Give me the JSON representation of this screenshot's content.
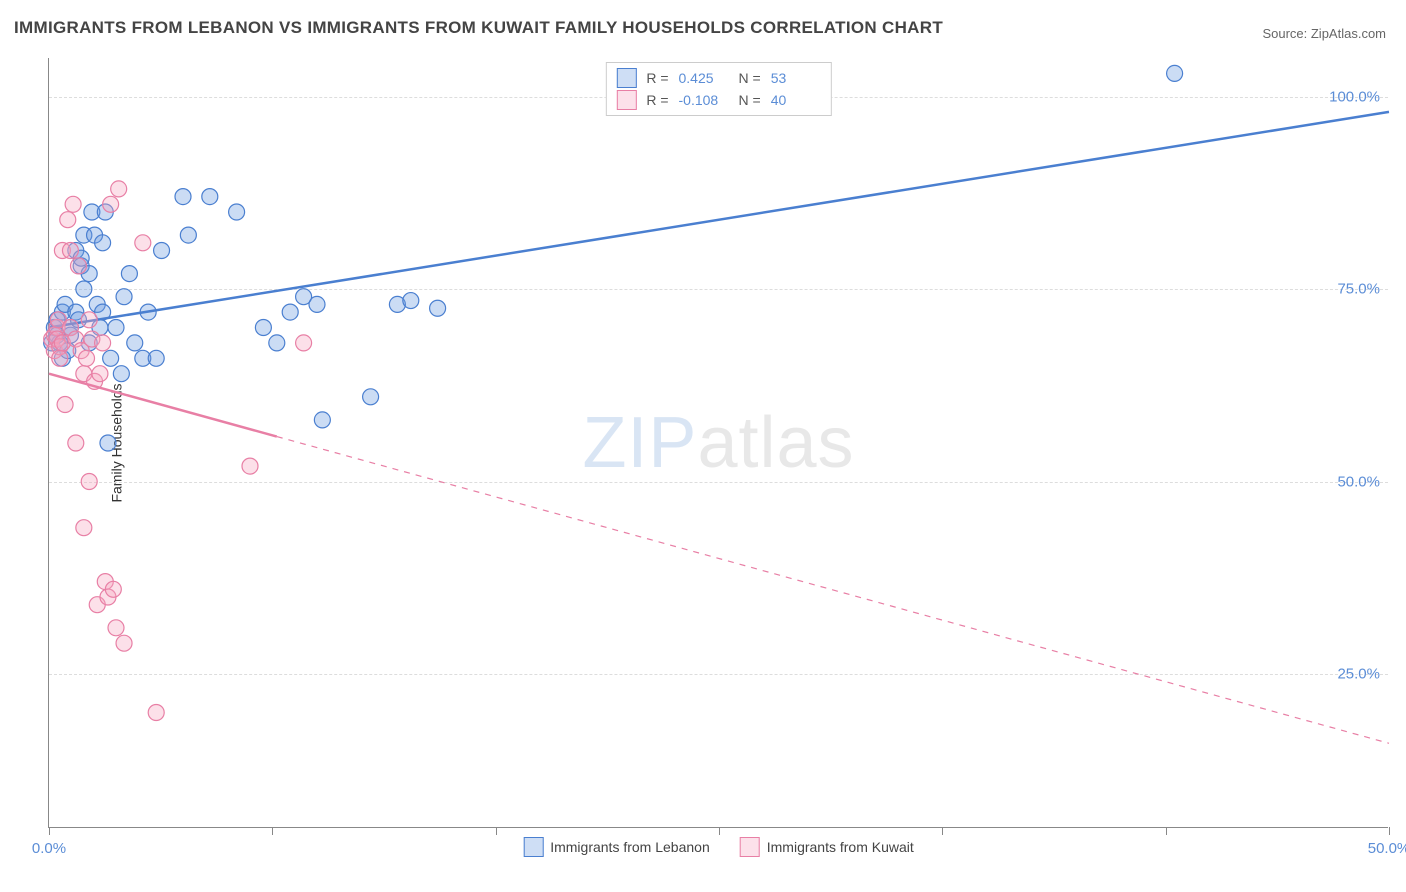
{
  "title": "IMMIGRANTS FROM LEBANON VS IMMIGRANTS FROM KUWAIT FAMILY HOUSEHOLDS CORRELATION CHART",
  "source_label": "Source: ZipAtlas.com",
  "ylabel": "Family Households",
  "watermark_a": "ZIP",
  "watermark_b": "atlas",
  "chart": {
    "type": "scatter",
    "xlim": [
      0,
      50
    ],
    "ylim": [
      5,
      105
    ],
    "x_tick_positions": [
      0,
      8.33,
      16.67,
      25,
      33.33,
      41.67,
      50
    ],
    "x_tick_labels": [
      "0.0%",
      "",
      "",
      "",
      "",
      "",
      "50.0%"
    ],
    "y_gridlines": [
      25,
      50,
      75,
      100
    ],
    "y_tick_labels": [
      "25.0%",
      "50.0%",
      "75.0%",
      "100.0%"
    ],
    "background_color": "#ffffff",
    "grid_color": "#dddddd",
    "axis_color": "#888888",
    "tick_label_color": "#5b8dd6",
    "marker_radius": 8,
    "marker_stroke_width": 1.2,
    "marker_fill_opacity": 0.35,
    "trend_line_width": 2.5
  },
  "series": [
    {
      "key": "lebanon",
      "label": "Immigrants from Lebanon",
      "color": "#6b9ce0",
      "stroke": "#4a7fd0",
      "R": "0.425",
      "N": "53",
      "trend": {
        "x1": 0,
        "y1": 70,
        "x2": 50,
        "y2": 98,
        "dash_after_x": null
      },
      "points": [
        [
          0.1,
          68
        ],
        [
          0.2,
          70
        ],
        [
          0.3,
          69
        ],
        [
          0.3,
          71
        ],
        [
          0.4,
          68
        ],
        [
          0.5,
          66
        ],
        [
          0.5,
          72
        ],
        [
          0.6,
          73
        ],
        [
          0.7,
          67
        ],
        [
          0.8,
          69
        ],
        [
          0.8,
          70
        ],
        [
          1.0,
          80
        ],
        [
          1.0,
          72
        ],
        [
          1.1,
          71
        ],
        [
          1.2,
          78
        ],
        [
          1.2,
          79
        ],
        [
          1.3,
          82
        ],
        [
          1.3,
          75
        ],
        [
          1.5,
          68
        ],
        [
          1.5,
          77
        ],
        [
          1.6,
          85
        ],
        [
          1.7,
          82
        ],
        [
          1.8,
          73
        ],
        [
          1.9,
          70
        ],
        [
          2.0,
          81
        ],
        [
          2.0,
          72
        ],
        [
          2.1,
          85
        ],
        [
          2.2,
          55
        ],
        [
          2.3,
          66
        ],
        [
          2.5,
          70
        ],
        [
          2.7,
          64
        ],
        [
          2.8,
          74
        ],
        [
          3.0,
          77
        ],
        [
          3.2,
          68
        ],
        [
          3.5,
          66
        ],
        [
          3.7,
          72
        ],
        [
          4.0,
          66
        ],
        [
          4.2,
          80
        ],
        [
          5.0,
          87
        ],
        [
          5.2,
          82
        ],
        [
          6.0,
          87
        ],
        [
          7.0,
          85
        ],
        [
          8.0,
          70
        ],
        [
          8.5,
          68
        ],
        [
          9.0,
          72
        ],
        [
          9.5,
          74
        ],
        [
          10.0,
          73
        ],
        [
          10.2,
          58
        ],
        [
          12.0,
          61
        ],
        [
          13.0,
          73
        ],
        [
          13.5,
          73.5
        ],
        [
          14.5,
          72.5
        ],
        [
          42.0,
          103
        ]
      ]
    },
    {
      "key": "kuwait",
      "label": "Immigrants from Kuwait",
      "color": "#f5a6c0",
      "stroke": "#e87fa5",
      "R": "-0.108",
      "N": "40",
      "trend": {
        "x1": 0,
        "y1": 64,
        "x2": 50,
        "y2": 16,
        "dash_after_x": 8.5
      },
      "points": [
        [
          0.1,
          68.5
        ],
        [
          0.2,
          67
        ],
        [
          0.2,
          69
        ],
        [
          0.3,
          70
        ],
        [
          0.3,
          68.5
        ],
        [
          0.35,
          71
        ],
        [
          0.4,
          67.5
        ],
        [
          0.4,
          66
        ],
        [
          0.5,
          80
        ],
        [
          0.5,
          68
        ],
        [
          0.6,
          60
        ],
        [
          0.7,
          84
        ],
        [
          0.8,
          80
        ],
        [
          0.8,
          70
        ],
        [
          0.9,
          86
        ],
        [
          1.0,
          68.5
        ],
        [
          1.0,
          55
        ],
        [
          1.1,
          78
        ],
        [
          1.2,
          67
        ],
        [
          1.3,
          64
        ],
        [
          1.3,
          44
        ],
        [
          1.4,
          66
        ],
        [
          1.5,
          71
        ],
        [
          1.5,
          50
        ],
        [
          1.6,
          68.5
        ],
        [
          1.7,
          63
        ],
        [
          1.8,
          34
        ],
        [
          1.9,
          64
        ],
        [
          2.0,
          68
        ],
        [
          2.1,
          37
        ],
        [
          2.2,
          35
        ],
        [
          2.3,
          86
        ],
        [
          2.4,
          36
        ],
        [
          2.5,
          31
        ],
        [
          2.6,
          88
        ],
        [
          2.8,
          29
        ],
        [
          3.5,
          81
        ],
        [
          4.0,
          20
        ],
        [
          7.5,
          52
        ],
        [
          9.5,
          68
        ]
      ]
    }
  ],
  "legend_top_labels": {
    "R": "R =",
    "N": "N ="
  }
}
